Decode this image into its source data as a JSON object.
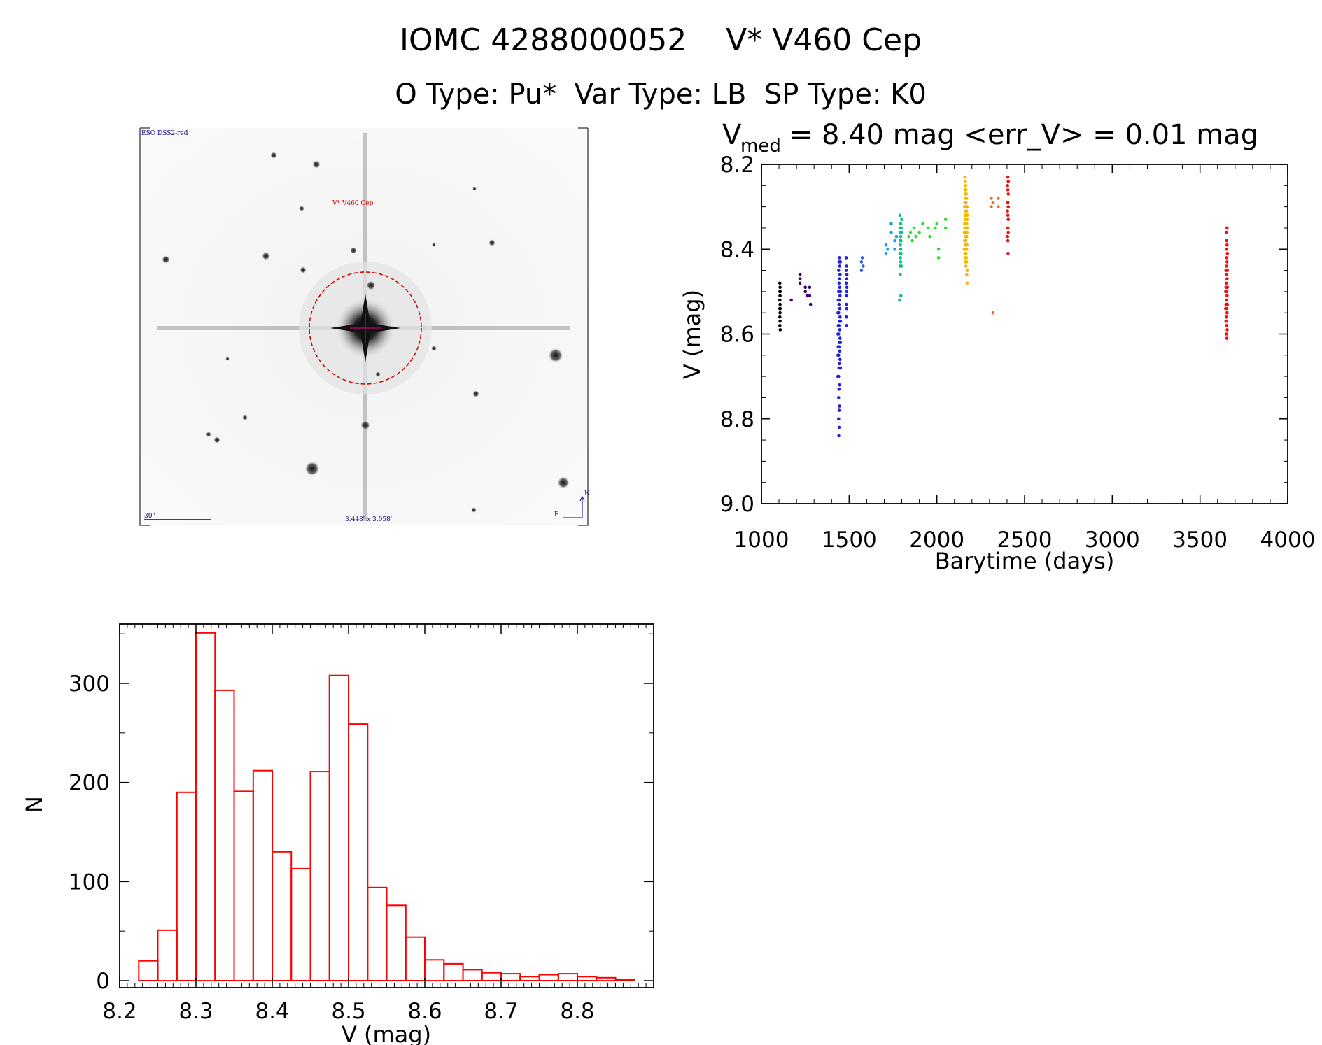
{
  "header": {
    "title": "IOMC 4288000052    V* V460 Cep",
    "subtitle": "O Type: Pu*  Var Type: LB  SP Type: K0"
  },
  "finder": {
    "survey_label": "ESO DSS2-red",
    "object_label": "V* V460 Cep",
    "scale_label": "30\"",
    "fov_label": "3.448' x 3.058'",
    "north_label": "N",
    "east_label": "E"
  },
  "colors": {
    "hist": "#ff0000",
    "circle": "#cc0000",
    "marker": "#aa0066",
    "finder_text": "#000080"
  },
  "chart_data": [
    {
      "type": "scatter",
      "title": "V",
      "title_sub": "med",
      "title_rest": " = 8.40 mag <err_V> = 0.01 mag",
      "xlabel": "Barytime (days)",
      "ylabel": "V (mag)",
      "xlim": [
        1000,
        4000
      ],
      "ylim": [
        9.0,
        8.2
      ],
      "xticks": [
        1000,
        1500,
        2000,
        2500,
        3000,
        3500,
        4000
      ],
      "xtick_labels": [
        "1000",
        "1500",
        "2000",
        "2500",
        "3000",
        "3500",
        "4000"
      ],
      "yticks": [
        8.2,
        8.4,
        8.6,
        8.8,
        9.0
      ],
      "ytick_labels": [
        "8.2",
        "8.4",
        "8.6",
        "8.8",
        "9.0"
      ],
      "series": [
        {
          "name": "g1",
          "color": "#000000",
          "points": [
            [
              1105,
              8.48
            ],
            [
              1105,
              8.5
            ],
            [
              1105,
              8.52
            ],
            [
              1105,
              8.54
            ],
            [
              1105,
              8.56
            ],
            [
              1105,
              8.58
            ],
            [
              1106,
              8.49
            ],
            [
              1106,
              8.51
            ],
            [
              1106,
              8.53
            ],
            [
              1106,
              8.55
            ],
            [
              1106,
              8.57
            ],
            [
              1107,
              8.59
            ],
            [
              1107,
              8.5
            ],
            [
              1107,
              8.54
            ]
          ]
        },
        {
          "name": "g2",
          "color": "#3a0070",
          "points": [
            [
              1170,
              8.52
            ],
            [
              1220,
              8.46
            ],
            [
              1220,
              8.47
            ],
            [
              1220,
              8.48
            ],
            [
              1250,
              8.49
            ],
            [
              1250,
              8.5
            ],
            [
              1260,
              8.51
            ],
            [
              1275,
              8.49
            ],
            [
              1275,
              8.51
            ],
            [
              1280,
              8.53
            ]
          ]
        },
        {
          "name": "g3",
          "color": "#2020dd",
          "points": [
            [
              1440,
              8.45
            ],
            [
              1440,
              8.5
            ],
            [
              1440,
              8.55
            ],
            [
              1440,
              8.6
            ],
            [
              1440,
              8.65
            ],
            [
              1440,
              8.7
            ],
            [
              1440,
              8.75
            ],
            [
              1440,
              8.8
            ],
            [
              1441,
              8.84
            ],
            [
              1442,
              8.43
            ],
            [
              1442,
              8.48
            ],
            [
              1442,
              8.53
            ],
            [
              1442,
              8.58
            ],
            [
              1442,
              8.63
            ],
            [
              1442,
              8.68
            ],
            [
              1442,
              8.73
            ],
            [
              1443,
              8.78
            ],
            [
              1443,
              8.82
            ],
            [
              1444,
              8.42
            ],
            [
              1444,
              8.47
            ],
            [
              1444,
              8.52
            ],
            [
              1444,
              8.57
            ],
            [
              1444,
              8.62
            ],
            [
              1444,
              8.67
            ],
            [
              1445,
              8.72
            ],
            [
              1445,
              8.77
            ],
            [
              1446,
              8.44
            ],
            [
              1446,
              8.49
            ],
            [
              1446,
              8.54
            ],
            [
              1446,
              8.59
            ],
            [
              1446,
              8.64
            ],
            [
              1448,
              8.46
            ],
            [
              1448,
              8.51
            ],
            [
              1448,
              8.56
            ],
            [
              1448,
              8.61
            ],
            [
              1448,
              8.66
            ],
            [
              1450,
              8.43
            ],
            [
              1450,
              8.5
            ],
            [
              1450,
              8.57
            ],
            [
              1450,
              8.62
            ],
            [
              1450,
              8.68
            ],
            [
              1436,
              8.55
            ],
            [
              1436,
              8.6
            ],
            [
              1436,
              8.65
            ],
            [
              1436,
              8.7
            ],
            [
              1438,
              8.52
            ],
            [
              1438,
              8.58
            ],
            [
              1438,
              8.63
            ],
            [
              1483,
              8.42
            ],
            [
              1483,
              8.45
            ],
            [
              1483,
              8.48
            ],
            [
              1484,
              8.51
            ],
            [
              1484,
              8.53
            ],
            [
              1484,
              8.56
            ],
            [
              1485,
              8.58
            ],
            [
              1485,
              8.44
            ],
            [
              1485,
              8.47
            ],
            [
              1486,
              8.5
            ],
            [
              1486,
              8.54
            ],
            [
              1487,
              8.46
            ],
            [
              1487,
              8.49
            ]
          ]
        },
        {
          "name": "g4",
          "color": "#2060ee",
          "points": [
            [
              1570,
              8.43
            ],
            [
              1570,
              8.45
            ],
            [
              1575,
              8.42
            ],
            [
              1580,
              8.44
            ]
          ]
        },
        {
          "name": "g5",
          "color": "#1aa0ee",
          "points": [
            [
              1710,
              8.39
            ],
            [
              1710,
              8.41
            ],
            [
              1720,
              8.4
            ],
            [
              1740,
              8.34
            ],
            [
              1740,
              8.36
            ],
            [
              1760,
              8.38
            ],
            [
              1760,
              8.4
            ],
            [
              1770,
              8.37
            ]
          ]
        },
        {
          "name": "g6",
          "color": "#10c080",
          "points": [
            [
              1790,
              8.32
            ],
            [
              1790,
              8.35
            ],
            [
              1790,
              8.38
            ],
            [
              1790,
              8.41
            ],
            [
              1790,
              8.44
            ],
            [
              1791,
              8.46
            ],
            [
              1792,
              8.36
            ],
            [
              1792,
              8.39
            ],
            [
              1792,
              8.42
            ],
            [
              1794,
              8.34
            ],
            [
              1794,
              8.37
            ],
            [
              1794,
              8.4
            ],
            [
              1794,
              8.43
            ],
            [
              1796,
              8.38
            ],
            [
              1796,
              8.41
            ],
            [
              1798,
              8.35
            ],
            [
              1798,
              8.44
            ],
            [
              1788,
              8.52
            ],
            [
              1795,
              8.51
            ],
            [
              1800,
              8.33
            ],
            [
              1800,
              8.36
            ]
          ]
        },
        {
          "name": "g7",
          "color": "#30dd30",
          "points": [
            [
              1840,
              8.37
            ],
            [
              1850,
              8.36
            ],
            [
              1860,
              8.38
            ],
            [
              1870,
              8.35
            ],
            [
              1880,
              8.37
            ],
            [
              1900,
              8.36
            ],
            [
              1920,
              8.34
            ],
            [
              1950,
              8.35
            ],
            [
              1960,
              8.37
            ],
            [
              1990,
              8.35
            ],
            [
              2000,
              8.34
            ],
            [
              2010,
              8.4
            ],
            [
              2010,
              8.42
            ],
            [
              2050,
              8.33
            ],
            [
              2050,
              8.35
            ]
          ]
        },
        {
          "name": "g8",
          "color": "#f2b800",
          "points": [
            [
              2160,
              8.23
            ],
            [
              2160,
              8.26
            ],
            [
              2160,
              8.29
            ],
            [
              2160,
              8.32
            ],
            [
              2160,
              8.35
            ],
            [
              2160,
              8.38
            ],
            [
              2160,
              8.41
            ],
            [
              2162,
              8.24
            ],
            [
              2162,
              8.27
            ],
            [
              2162,
              8.3
            ],
            [
              2162,
              8.33
            ],
            [
              2162,
              8.36
            ],
            [
              2162,
              8.39
            ],
            [
              2162,
              8.42
            ],
            [
              2164,
              8.25
            ],
            [
              2164,
              8.28
            ],
            [
              2164,
              8.31
            ],
            [
              2164,
              8.34
            ],
            [
              2164,
              8.37
            ],
            [
              2164,
              8.4
            ],
            [
              2164,
              8.43
            ],
            [
              2166,
              8.26
            ],
            [
              2166,
              8.29
            ],
            [
              2166,
              8.32
            ],
            [
              2166,
              8.35
            ],
            [
              2166,
              8.38
            ],
            [
              2166,
              8.41
            ],
            [
              2166,
              8.44
            ],
            [
              2168,
              8.27
            ],
            [
              2168,
              8.3
            ],
            [
              2168,
              8.33
            ],
            [
              2168,
              8.36
            ],
            [
              2168,
              8.39
            ],
            [
              2168,
              8.42
            ],
            [
              2170,
              8.28
            ],
            [
              2170,
              8.31
            ],
            [
              2170,
              8.34
            ],
            [
              2170,
              8.37
            ],
            [
              2170,
              8.4
            ],
            [
              2170,
              8.43
            ],
            [
              2170,
              8.46
            ],
            [
              2172,
              8.3
            ],
            [
              2172,
              8.33
            ],
            [
              2172,
              8.36
            ],
            [
              2172,
              8.39
            ],
            [
              2172,
              8.48
            ],
            [
              2158,
              8.3
            ],
            [
              2158,
              8.34
            ],
            [
              2158,
              8.38
            ],
            [
              2156,
              8.36
            ],
            [
              2156,
              8.4
            ],
            [
              2174,
              8.32
            ],
            [
              2174,
              8.35
            ],
            [
              2174,
              8.45
            ]
          ]
        },
        {
          "name": "g9",
          "color": "#ee7020",
          "points": [
            [
              2310,
              8.28
            ],
            [
              2310,
              8.3
            ],
            [
              2320,
              8.29
            ],
            [
              2320,
              8.55
            ],
            [
              2350,
              8.28
            ],
            [
              2350,
              8.3
            ]
          ]
        },
        {
          "name": "g10",
          "color": "#ee1010",
          "points": [
            [
              2405,
              8.23
            ],
            [
              2405,
              8.26
            ],
            [
              2405,
              8.29
            ],
            [
              2405,
              8.32
            ],
            [
              2405,
              8.35
            ],
            [
              2405,
              8.38
            ],
            [
              2406,
              8.41
            ],
            [
              2407,
              8.24
            ],
            [
              2407,
              8.27
            ],
            [
              2407,
              8.3
            ],
            [
              2407,
              8.33
            ],
            [
              2407,
              8.36
            ],
            [
              2403,
              8.25
            ],
            [
              2403,
              8.31
            ],
            [
              2403,
              8.37
            ],
            [
              3650,
              8.36
            ],
            [
              3650,
              8.4
            ],
            [
              3650,
              8.44
            ],
            [
              3650,
              8.48
            ],
            [
              3650,
              8.52
            ],
            [
              3650,
              8.56
            ],
            [
              3651,
              8.6
            ],
            [
              3652,
              8.38
            ],
            [
              3652,
              8.42
            ],
            [
              3652,
              8.46
            ],
            [
              3652,
              8.5
            ],
            [
              3652,
              8.54
            ],
            [
              3652,
              8.58
            ],
            [
              3653,
              8.61
            ],
            [
              3654,
              8.35
            ],
            [
              3654,
              8.39
            ],
            [
              3654,
              8.43
            ],
            [
              3654,
              8.47
            ],
            [
              3654,
              8.51
            ],
            [
              3654,
              8.55
            ],
            [
              3655,
              8.59
            ],
            [
              3648,
              8.45
            ],
            [
              3648,
              8.49
            ],
            [
              3648,
              8.53
            ],
            [
              3648,
              8.57
            ],
            [
              3646,
              8.5
            ],
            [
              3646,
              8.54
            ],
            [
              3656,
              8.41
            ],
            [
              3656,
              8.45
            ],
            [
              3656,
              8.49
            ],
            [
              3656,
              8.53
            ]
          ]
        }
      ]
    },
    {
      "type": "bar",
      "title": "",
      "xlabel": "V (mag)",
      "ylabel": "N",
      "xlim": [
        8.2,
        8.9
      ],
      "ylim": [
        0,
        360
      ],
      "bin_width": 0.025,
      "bin_start": 8.225,
      "values": [
        20,
        51,
        190,
        351,
        293,
        191,
        212,
        130,
        113,
        211,
        308,
        259,
        94,
        76,
        44,
        21,
        17,
        11,
        8,
        7,
        4,
        6,
        7,
        4,
        3,
        1
      ],
      "xticks": [
        8.2,
        8.3,
        8.4,
        8.5,
        8.6,
        8.7,
        8.8
      ],
      "xtick_labels": [
        "8.2",
        "8.3",
        "8.4",
        "8.5",
        "8.6",
        "8.7",
        "8.8"
      ],
      "yticks": [
        0,
        100,
        200,
        300
      ],
      "ytick_labels": [
        "0",
        "100",
        "200",
        "300"
      ]
    }
  ]
}
